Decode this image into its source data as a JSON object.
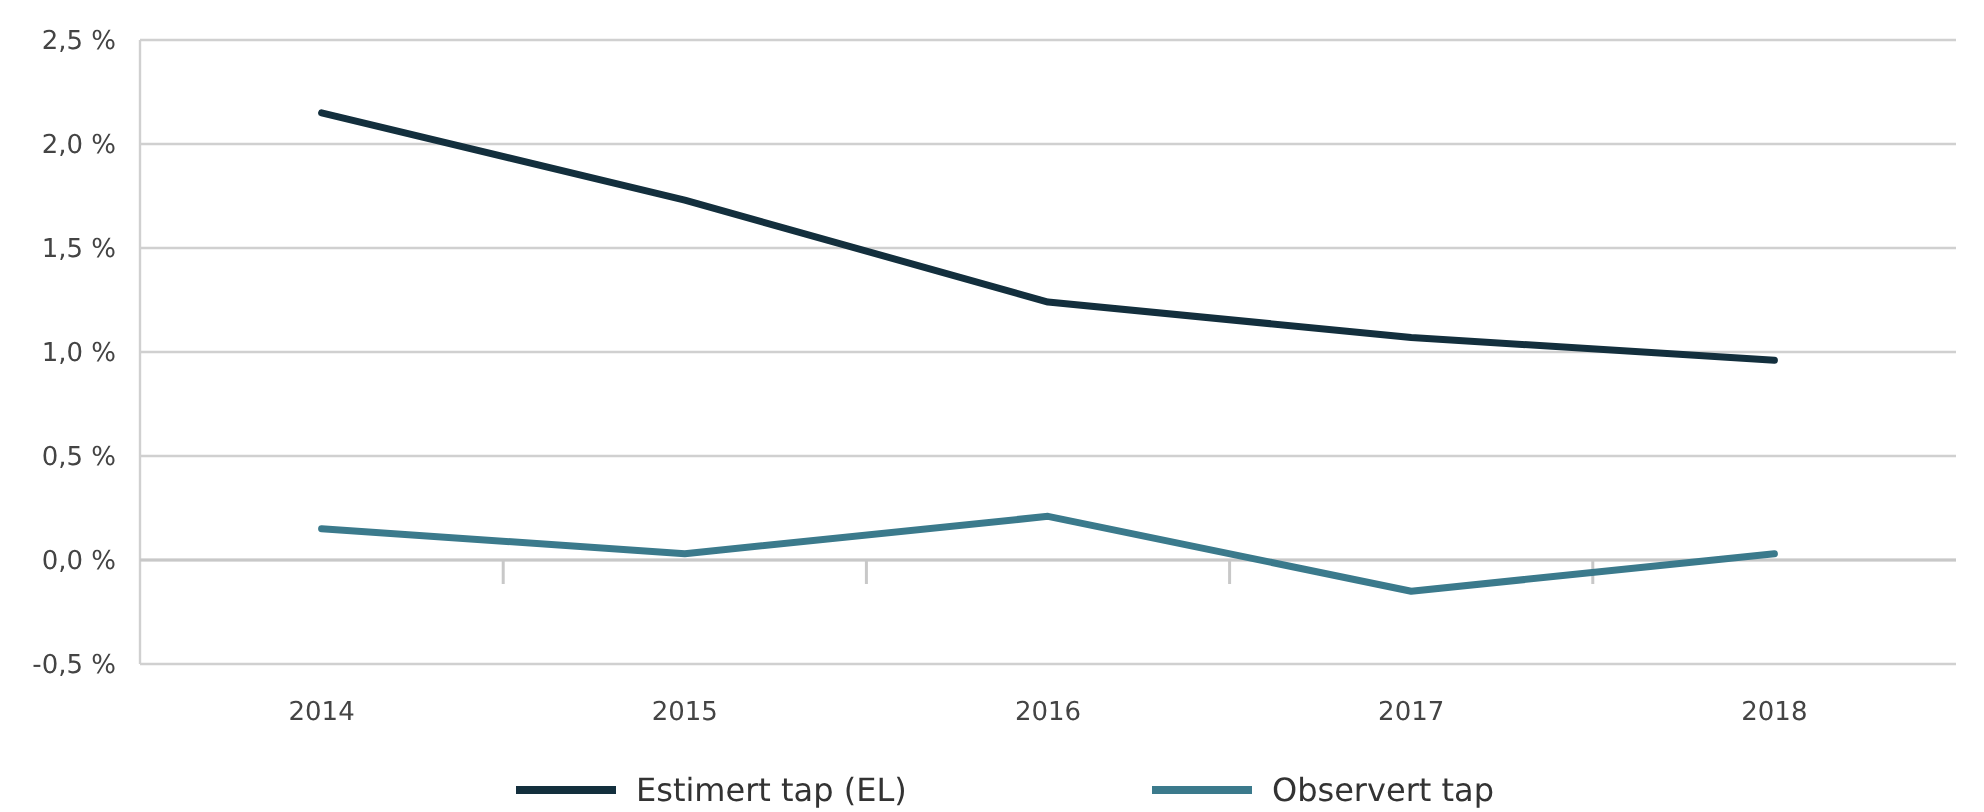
{
  "chart_data": {
    "type": "line",
    "categories": [
      "2014",
      "2015",
      "2016",
      "2017",
      "2018"
    ],
    "series": [
      {
        "name": "Estimert tap (EL)",
        "color": "#132f3d",
        "values": [
          2.15,
          1.73,
          1.24,
          1.07,
          0.96
        ]
      },
      {
        "name": "Observert tap",
        "color": "#3b7a8c",
        "values": [
          0.15,
          0.03,
          0.21,
          -0.15,
          0.03
        ]
      }
    ],
    "ylim": [
      -0.5,
      2.5
    ],
    "yticks": [
      {
        "value": -0.5,
        "label": "-0,5 %"
      },
      {
        "value": 0,
        "label": "0,0 %"
      },
      {
        "value": 0.5,
        "label": "0,5 %"
      },
      {
        "value": 1,
        "label": "1,0 %"
      },
      {
        "value": 1.5,
        "label": "1,5 %"
      },
      {
        "value": 2,
        "label": "2,0 %"
      },
      {
        "value": 2.5,
        "label": "2,5 %"
      }
    ],
    "grid": "y",
    "legend": "bottom",
    "marker": "none",
    "line_style": "solid"
  }
}
